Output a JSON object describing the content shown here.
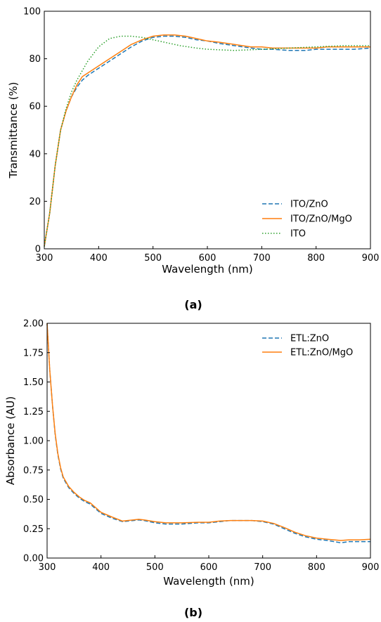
{
  "chart_data": [
    {
      "type": "line",
      "caption": "(a)",
      "xlabel": "Wavelength (nm)",
      "ylabel": "Transmittance (%)",
      "xlim": [
        300,
        900
      ],
      "ylim": [
        0,
        100
      ],
      "xticks": [
        "300",
        "400",
        "500",
        "600",
        "700",
        "800",
        "900"
      ],
      "yticks": [
        "0",
        "20",
        "40",
        "60",
        "80",
        "100"
      ],
      "grid": false,
      "legend_position": "bottom-right",
      "series": [
        {
          "name": "ITO/ZnO",
          "color": "#1f77b4",
          "dash": "dashed",
          "x": [
            300,
            310,
            320,
            330,
            340,
            350,
            360,
            370,
            380,
            400,
            420,
            440,
            460,
            480,
            500,
            520,
            540,
            560,
            580,
            600,
            620,
            650,
            680,
            700,
            720,
            750,
            780,
            800,
            820,
            850,
            870,
            900
          ],
          "y": [
            1,
            15,
            35,
            50,
            58,
            64,
            68,
            71,
            73,
            76,
            79,
            82,
            85,
            87.5,
            89,
            89.5,
            89.5,
            89,
            88,
            87.5,
            86.5,
            85.5,
            84.5,
            84,
            84,
            83.5,
            83.5,
            84,
            84,
            84,
            84,
            84.5
          ]
        },
        {
          "name": "ITO/ZnO/MgO",
          "color": "#ff7f0e",
          "dash": "solid",
          "x": [
            300,
            310,
            320,
            330,
            340,
            350,
            360,
            370,
            380,
            400,
            420,
            440,
            460,
            480,
            500,
            520,
            540,
            560,
            580,
            600,
            620,
            650,
            680,
            700,
            720,
            750,
            780,
            800,
            820,
            850,
            870,
            900
          ],
          "y": [
            1,
            15,
            35,
            50,
            58,
            64,
            69,
            72.5,
            74,
            77,
            80,
            83,
            86,
            88,
            89.5,
            90,
            90,
            89.5,
            88.5,
            87.5,
            87,
            86,
            85,
            85,
            84.5,
            84.5,
            84.5,
            84.5,
            85,
            85,
            85,
            85
          ]
        },
        {
          "name": "ITO",
          "color": "#2ca02c",
          "dash": "dotted",
          "x": [
            300,
            310,
            320,
            330,
            340,
            350,
            360,
            370,
            380,
            400,
            420,
            440,
            460,
            480,
            500,
            520,
            550,
            580,
            600,
            650,
            700,
            750,
            800,
            850,
            900
          ],
          "y": [
            1,
            15,
            35,
            50,
            59,
            66,
            71,
            75,
            79,
            85,
            88.5,
            89.5,
            89.5,
            89,
            88,
            87,
            85.5,
            84.5,
            84,
            83.5,
            84,
            84.5,
            85,
            85.5,
            85.5
          ]
        }
      ]
    },
    {
      "type": "line",
      "caption": "(b)",
      "xlabel": "Wavelength (nm)",
      "ylabel": "Absorbance (AU)",
      "xlim": [
        300,
        900
      ],
      "ylim": [
        0,
        2
      ],
      "xticks": [
        "300",
        "400",
        "500",
        "600",
        "700",
        "800",
        "900"
      ],
      "yticks": [
        "0.00",
        "0.25",
        "0.50",
        "0.75",
        "1.00",
        "1.25",
        "1.50",
        "1.75",
        "2.00"
      ],
      "grid": false,
      "legend_position": "top-right",
      "series": [
        {
          "name": "ETL:ZnO",
          "color": "#1f77b4",
          "dash": "dashed",
          "x": [
            300,
            305,
            310,
            315,
            320,
            325,
            330,
            340,
            350,
            360,
            370,
            380,
            390,
            400,
            420,
            440,
            460,
            470,
            480,
            500,
            520,
            550,
            580,
            600,
            620,
            640,
            660,
            680,
            700,
            720,
            740,
            760,
            780,
            800,
            820,
            845,
            860,
            880,
            900
          ],
          "y": [
            2.0,
            1.6,
            1.3,
            1.05,
            0.88,
            0.76,
            0.68,
            0.6,
            0.55,
            0.51,
            0.48,
            0.46,
            0.42,
            0.38,
            0.34,
            0.31,
            0.32,
            0.325,
            0.32,
            0.3,
            0.29,
            0.29,
            0.3,
            0.3,
            0.31,
            0.32,
            0.32,
            0.32,
            0.31,
            0.29,
            0.25,
            0.21,
            0.18,
            0.16,
            0.15,
            0.13,
            0.14,
            0.14,
            0.14
          ]
        },
        {
          "name": "ETL:ZnO/MgO",
          "color": "#ff7f0e",
          "dash": "solid",
          "x": [
            300,
            305,
            310,
            315,
            320,
            325,
            330,
            340,
            350,
            360,
            370,
            380,
            390,
            400,
            420,
            440,
            460,
            470,
            480,
            500,
            520,
            550,
            580,
            600,
            620,
            640,
            660,
            680,
            700,
            720,
            740,
            760,
            780,
            800,
            820,
            845,
            860,
            880,
            900
          ],
          "y": [
            2.0,
            1.6,
            1.3,
            1.06,
            0.89,
            0.77,
            0.69,
            0.61,
            0.56,
            0.52,
            0.49,
            0.47,
            0.43,
            0.39,
            0.35,
            0.315,
            0.325,
            0.33,
            0.325,
            0.31,
            0.3,
            0.3,
            0.305,
            0.305,
            0.315,
            0.32,
            0.32,
            0.32,
            0.315,
            0.295,
            0.26,
            0.22,
            0.19,
            0.17,
            0.16,
            0.15,
            0.155,
            0.155,
            0.16
          ]
        }
      ]
    }
  ]
}
